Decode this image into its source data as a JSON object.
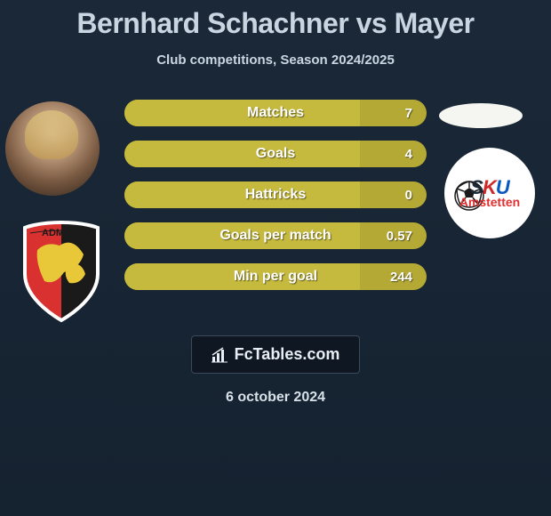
{
  "header": {
    "title": "Bernhard Schachner vs Mayer",
    "subtitle": "Club competitions, Season 2024/2025"
  },
  "left_player": {
    "avatar_bg": "#8a6a4a"
  },
  "left_club": {
    "name": "ADMIRA",
    "shield_left_color": "#d93030",
    "shield_right_color": "#1a1a1a",
    "wing_color": "#e8c838",
    "border_color": "#ffffff"
  },
  "right_club": {
    "text1": "S",
    "text2": "K",
    "text3": "U",
    "sub_text": "Amstetten",
    "bg": "#ffffff"
  },
  "stats": {
    "bar_color": "#b5a936",
    "fill_color": "#c5b93e",
    "rows": [
      {
        "label": "Matches",
        "value": "7",
        "fill_pct": 78
      },
      {
        "label": "Goals",
        "value": "4",
        "fill_pct": 78
      },
      {
        "label": "Hattricks",
        "value": "0",
        "fill_pct": 78
      },
      {
        "label": "Goals per match",
        "value": "0.57",
        "fill_pct": 78
      },
      {
        "label": "Min per goal",
        "value": "244",
        "fill_pct": 78
      }
    ]
  },
  "footer": {
    "brand": "FcTables.com",
    "date": "6 october 2024"
  },
  "colors": {
    "page_bg_top": "#1a2838",
    "page_bg_bottom": "#152230",
    "title_color": "#c9d6e2",
    "text_shadow": "rgba(0,0,0,0.5)"
  }
}
